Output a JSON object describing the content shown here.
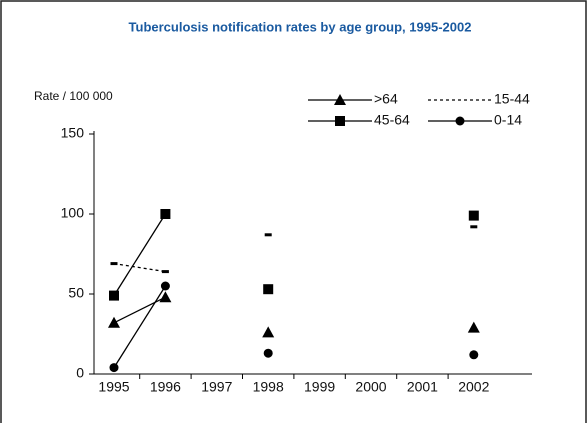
{
  "chart_data": {
    "type": "line",
    "title": "Tuberculosis notification rates by age group, 1995-2002",
    "y_label": "Rate / 100 000",
    "categories": [
      "1995",
      "1996",
      "1997",
      "1998",
      "1999",
      "2000",
      "2001",
      "2002"
    ],
    "ylim": [
      0,
      150
    ],
    "yticks": [
      0,
      50,
      100,
      150
    ],
    "series": [
      {
        "name": ">64",
        "color": "#000000",
        "marker": "triangle",
        "linestyle": "solid",
        "values": [
          32,
          48,
          null,
          26,
          null,
          null,
          null,
          29
        ]
      },
      {
        "name": "15-44",
        "color": "#000000",
        "marker": "dash",
        "linestyle": "dashed",
        "values": [
          69,
          64,
          null,
          87,
          null,
          null,
          null,
          92
        ]
      },
      {
        "name": "45-64",
        "color": "#000000",
        "marker": "square",
        "linestyle": "solid",
        "values": [
          49,
          100,
          null,
          53,
          null,
          null,
          null,
          99
        ]
      },
      {
        "name": "0-14",
        "color": "#000000",
        "marker": "circle",
        "linestyle": "solid",
        "values": [
          4,
          55,
          null,
          13,
          null,
          null,
          null,
          12
        ]
      }
    ]
  }
}
